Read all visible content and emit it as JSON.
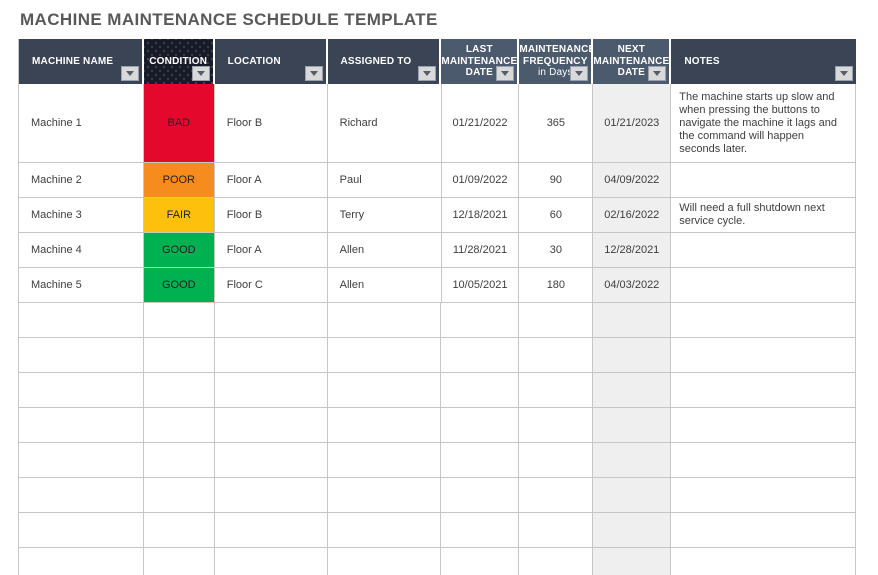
{
  "title": "MACHINE MAINTENANCE SCHEDULE TEMPLATE",
  "header": {
    "machine_name": "MACHINE NAME",
    "condition": "CONDITION",
    "location": "LOCATION",
    "assigned_to": "ASSIGNED TO",
    "last_maintenance": [
      "LAST",
      "MAINTENANCE",
      "DATE"
    ],
    "frequency": [
      "MAINTENANCE",
      "FREQUENCY",
      "in Days"
    ],
    "next_maintenance": [
      "NEXT",
      "MAINTENANCE",
      "DATE"
    ],
    "notes": "NOTES",
    "filter_icon": "chevron-down"
  },
  "colors": {
    "header_dark": "#3b4454",
    "header_light": "#4c5a6d",
    "header_condition": "#161b27",
    "bad": "#e4082d",
    "poor": "#f68b1e",
    "fair": "#fdc10d",
    "good": "#00b152",
    "next_date_column": "#efefef",
    "title_text": "#595959"
  },
  "rows": [
    {
      "machine": "Machine 1",
      "condition": "BAD",
      "condition_color": "#e4082d",
      "location": "Floor B",
      "assigned": "Richard",
      "last_date": "01/21/2022",
      "frequency": "365",
      "next_date": "01/21/2023",
      "notes": "The machine starts up slow and when pressing the buttons to navigate the machine it lags and the command will happen seconds later."
    },
    {
      "machine": "Machine 2",
      "condition": "POOR",
      "condition_color": "#f68b1e",
      "location": "Floor A",
      "assigned": "Paul",
      "last_date": "01/09/2022",
      "frequency": "90",
      "next_date": "04/09/2022",
      "notes": ""
    },
    {
      "machine": "Machine 3",
      "condition": "FAIR",
      "condition_color": "#fdc10d",
      "location": "Floor B",
      "assigned": "Terry",
      "last_date": "12/18/2021",
      "frequency": "60",
      "next_date": "02/16/2022",
      "notes": "Will need a full shutdown next service cycle."
    },
    {
      "machine": "Machine 4",
      "condition": "GOOD",
      "condition_color": "#00b152",
      "location": "Floor A",
      "assigned": "Allen",
      "last_date": "11/28/2021",
      "frequency": "30",
      "next_date": "12/28/2021",
      "notes": ""
    },
    {
      "machine": "Machine 5",
      "condition": "GOOD",
      "condition_color": "#00b152",
      "location": "Floor C",
      "assigned": "Allen",
      "last_date": "10/05/2021",
      "frequency": "180",
      "next_date": "04/03/2022",
      "notes": ""
    }
  ]
}
